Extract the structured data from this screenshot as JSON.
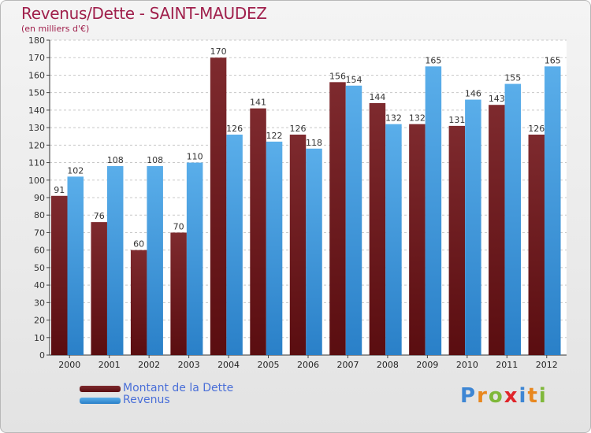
{
  "chart_data": {
    "type": "bar",
    "title": "Revenus/Dette - SAINT-MAUDEZ",
    "subtitle": "(en milliers d'€)",
    "categories": [
      "2000",
      "2001",
      "2002",
      "2003",
      "2004",
      "2005",
      "2006",
      "2007",
      "2008",
      "2009",
      "2010",
      "2011",
      "2012"
    ],
    "series": [
      {
        "name": "Montant de la Dette",
        "color": "#7a1a1e",
        "values": [
          91,
          76,
          60,
          70,
          170,
          141,
          126,
          156,
          144,
          132,
          131,
          143,
          126
        ]
      },
      {
        "name": "Revenus",
        "color": "#4aa3e8",
        "values": [
          102,
          108,
          108,
          110,
          126,
          122,
          118,
          154,
          132,
          165,
          146,
          155,
          165
        ]
      }
    ],
    "ylim": [
      0,
      180
    ],
    "yticks": [
      0,
      10,
      20,
      30,
      40,
      50,
      60,
      70,
      80,
      90,
      100,
      110,
      120,
      130,
      140,
      150,
      160,
      170,
      180
    ],
    "grid": true,
    "legend_position": "bottom-left"
  },
  "logo": {
    "letters": [
      "P",
      "r",
      "o",
      "x",
      "i",
      "t",
      "i"
    ],
    "colors": [
      "#3d86d4",
      "#e8871e",
      "#7fb83a",
      "#e0252a",
      "#3d86d4",
      "#e8871e",
      "#7fb83a"
    ]
  }
}
